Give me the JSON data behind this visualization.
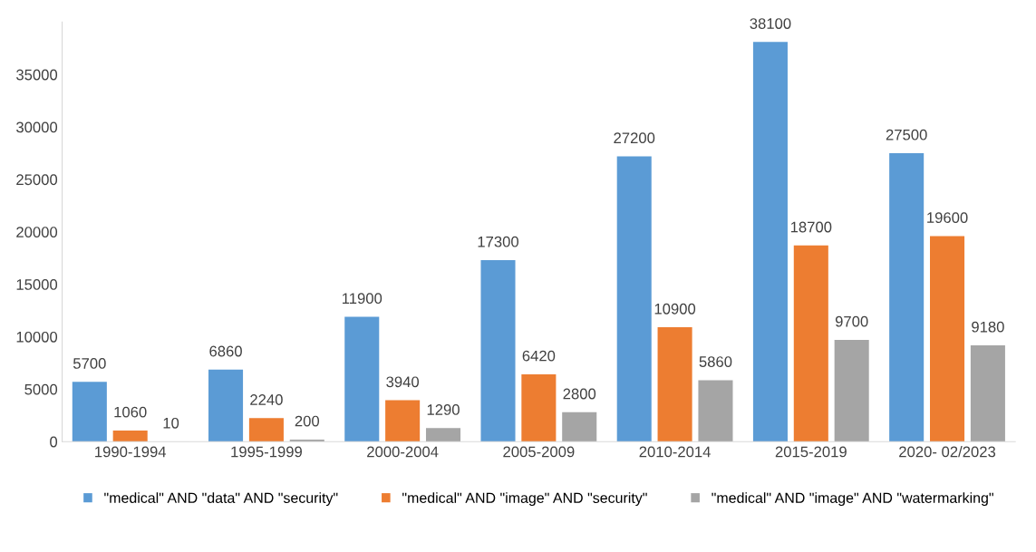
{
  "chart_data": {
    "type": "bar",
    "categories": [
      "1990-1994",
      "1995-1999",
      "2000-2004",
      "2005-2009",
      "2010-2014",
      "2015-2019",
      "2020- 02/2023"
    ],
    "series": [
      {
        "name": "\"medical\" AND \"data\" AND \"security\"",
        "color": "#5b9bd5",
        "values": [
          5700,
          6860,
          11900,
          17300,
          27200,
          38100,
          27500
        ]
      },
      {
        "name": "\"medical\" AND \"image\" AND \"security\"",
        "color": "#ed7d31",
        "values": [
          1060,
          2240,
          3940,
          6420,
          10900,
          18700,
          19600
        ]
      },
      {
        "name": "\"medical\" AND \"image\" AND \"watermarking\"",
        "color": "#a5a5a5",
        "values": [
          10,
          200,
          1290,
          2800,
          5860,
          9700,
          9180
        ]
      }
    ],
    "ylim": [
      0,
      40000
    ],
    "yticks": [
      0,
      5000,
      10000,
      15000,
      20000,
      25000,
      30000,
      35000
    ],
    "data_labels": true,
    "grid": false,
    "legend": "bottom"
  }
}
